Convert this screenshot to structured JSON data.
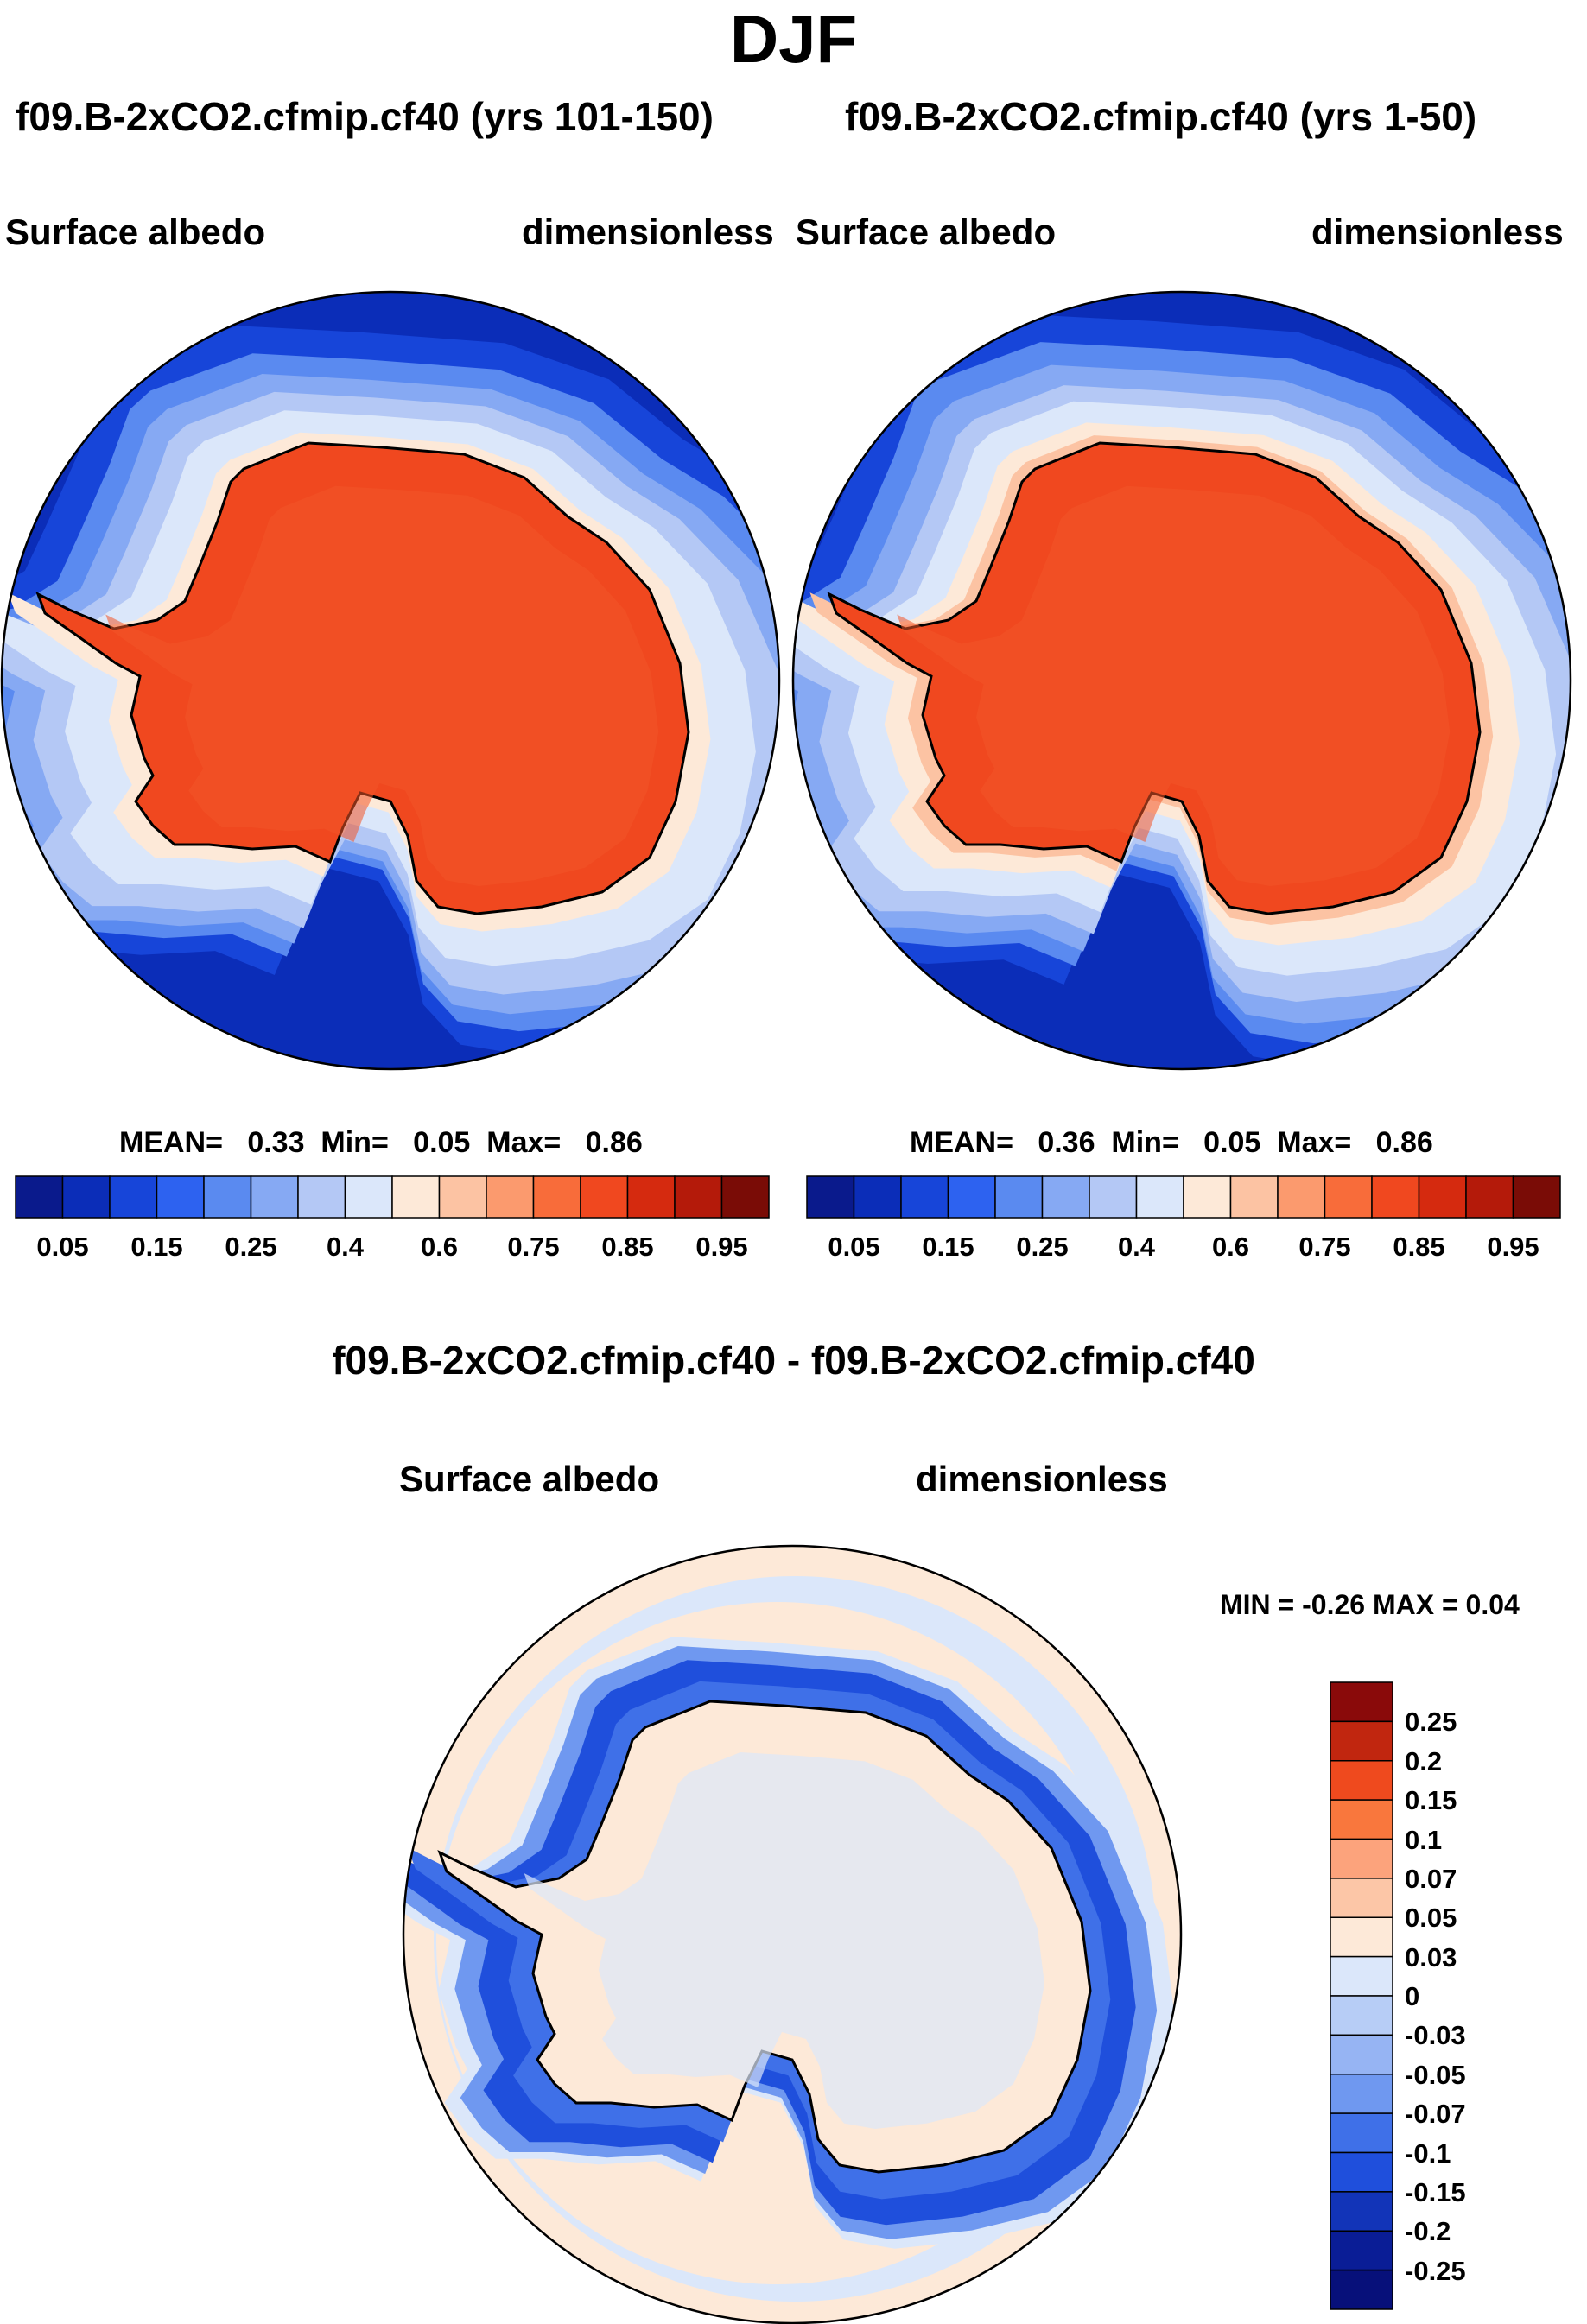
{
  "season": "DJF",
  "panels": [
    {
      "case": "f09.B-2xCO2.cfmip.cf40 (yrs 101-150)",
      "variable": "Surface albedo",
      "units": "dimensionless",
      "stats": {
        "mean_label": "MEAN=",
        "mean": "0.33",
        "min_label": "Min=",
        "min": "0.05",
        "max_label": "Max=",
        "max": "0.86"
      }
    },
    {
      "case": "f09.B-2xCO2.cfmip.cf40 (yrs 1-50)",
      "variable": "Surface albedo",
      "units": "dimensionless",
      "stats": {
        "mean_label": "MEAN=",
        "mean": "0.36",
        "min_label": "Min=",
        "min": "0.05",
        "max_label": "Max=",
        "max": "0.86"
      }
    }
  ],
  "colorbar": {
    "colors": [
      "#0a1a8c",
      "#0b2db8",
      "#1745d9",
      "#2d62f0",
      "#5a8af0",
      "#86a9f3",
      "#b4c8f5",
      "#dbe7fa",
      "#fde9d8",
      "#fcc3a3",
      "#fb9a6e",
      "#f86c3a",
      "#f0481f",
      "#d52a0f",
      "#b41a0a",
      "#7a0c06"
    ],
    "ticks": [
      "0.05",
      "0.15",
      "0.25",
      "0.4",
      "0.6",
      "0.75",
      "0.85",
      "0.95"
    ]
  },
  "difference": {
    "title": "f09.B-2xCO2.cfmip.cf40 - f09.B-2xCO2.cfmip.cf40",
    "variable": "Surface albedo",
    "units": "dimensionless",
    "minmax_text": "MIN =  -0.26 MAX =    0.04",
    "colorbar": {
      "colors_top_to_bottom": [
        "#8a0a0a",
        "#c1260f",
        "#ef4a1e",
        "#f9773d",
        "#fca37c",
        "#fcc6a7",
        "#fde9d8",
        "#dbe7fa",
        "#b7cdf6",
        "#96b4f3",
        "#6f98f0",
        "#3f70e8",
        "#1f4fdc",
        "#1234b8",
        "#0a1d96",
        "#07107a"
      ],
      "ticks": [
        "0.25",
        "0.2",
        "0.15",
        "0.1",
        "0.07",
        "0.05",
        "0.03",
        "0",
        "-0.03",
        "-0.05",
        "-0.07",
        "-0.1",
        "-0.15",
        "-0.2",
        "-0.25"
      ]
    }
  }
}
